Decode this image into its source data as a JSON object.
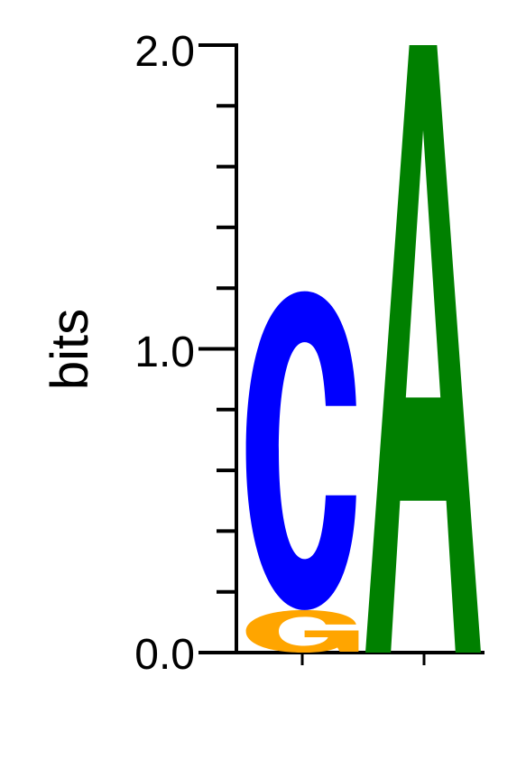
{
  "chart_data": {
    "type": "sequence-logo",
    "ylabel": "bits",
    "ylim": [
      0,
      2
    ],
    "yticks": [
      "0.0",
      "1.0",
      "2.0"
    ],
    "positions": [
      {
        "stack": [
          {
            "letter": "G",
            "bits": 0.14
          },
          {
            "letter": "C",
            "bits": 1.05
          }
        ]
      },
      {
        "stack": [
          {
            "letter": "A",
            "bits": 2.0
          }
        ]
      }
    ],
    "colors": {
      "A": "#008000",
      "C": "#0000ff",
      "G": "#ffa500"
    }
  }
}
